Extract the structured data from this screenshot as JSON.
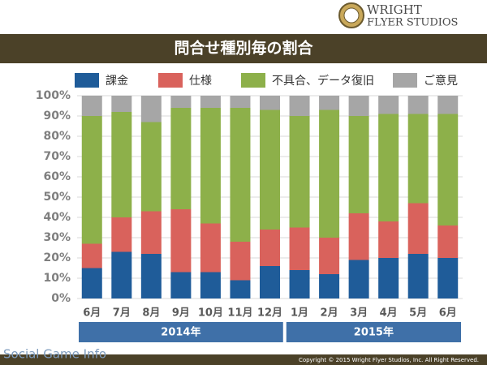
{
  "logo": {
    "line1": "WRIGHT",
    "line2": "FLYER STUDIOS"
  },
  "watermark": "Social Game Info",
  "copyright": "Copyright © 2015 Wright Flyer Studios, Inc. All Right Reserved.",
  "chart_data": {
    "type": "stacked_bar",
    "title": "問合せ種別毎の割合",
    "groups": [
      {
        "label": "2014年",
        "categories": [
          "6月",
          "7月",
          "8月",
          "9月",
          "10月",
          "11月",
          "12月"
        ]
      },
      {
        "label": "2015年",
        "categories": [
          "1月",
          "2月",
          "3月",
          "4月",
          "5月",
          "6月"
        ]
      }
    ],
    "series": [
      {
        "name": "課金",
        "color": "#1f5c99",
        "values": [
          15,
          23,
          22,
          13,
          13,
          9,
          16,
          14,
          12,
          19,
          20,
          22,
          20
        ]
      },
      {
        "name": "仕様",
        "color": "#d9625c",
        "values": [
          12,
          17,
          21,
          31,
          24,
          19,
          18,
          21,
          18,
          23,
          18,
          25,
          16
        ]
      },
      {
        "name": "不具合、データ復旧",
        "color": "#8db04a",
        "values": [
          63,
          52,
          44,
          50,
          57,
          66,
          59,
          55,
          63,
          48,
          53,
          44,
          55
        ]
      },
      {
        "name": "ご意見",
        "color": "#a6a6a6",
        "values": [
          10,
          8,
          13,
          6,
          6,
          6,
          7,
          10,
          7,
          10,
          9,
          9,
          9
        ]
      }
    ],
    "ylim": [
      0,
      100
    ],
    "yticks": [
      {
        "value": 0,
        "label": "0%"
      },
      {
        "value": 10,
        "label": "10%"
      },
      {
        "value": 20,
        "label": "20%"
      },
      {
        "value": 30,
        "label": "30%"
      },
      {
        "value": 40,
        "label": "40%"
      },
      {
        "value": 50,
        "label": "50%"
      },
      {
        "value": 60,
        "label": "60%"
      },
      {
        "value": 70,
        "label": "70%"
      },
      {
        "value": 80,
        "label": "80%"
      },
      {
        "value": 90,
        "label": "90%"
      },
      {
        "value": 100,
        "label": "100%"
      }
    ],
    "grid": true,
    "legend": "top"
  }
}
